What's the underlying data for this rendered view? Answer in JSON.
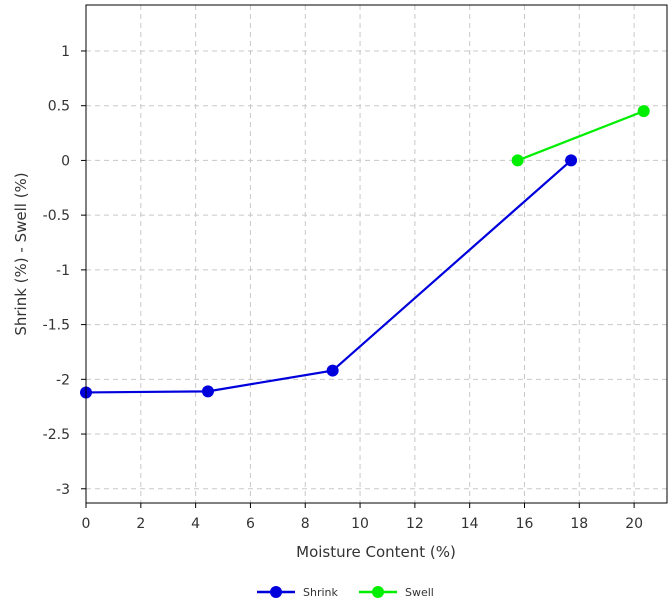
{
  "chart_data": {
    "type": "line",
    "title": "",
    "xlabel": "Moisture Content (%)",
    "ylabel": "Shrink (%) - Swell (%)",
    "xlim": [
      0,
      21.2
    ],
    "ylim": [
      -3.13,
      1.42
    ],
    "xticks": [
      0,
      2,
      4,
      6,
      8,
      10,
      12,
      14,
      16,
      18,
      20
    ],
    "yticks": [
      1,
      0.5,
      0,
      -0.5,
      -1,
      -1.5,
      -2,
      -2.5,
      -3
    ],
    "grid": true,
    "legend_position": "bottom-center",
    "series": [
      {
        "name": "Shrink",
        "color": "#0000dd",
        "x": [
          0,
          4.45,
          9.0,
          17.7
        ],
        "y": [
          -2.12,
          -2.11,
          -1.92,
          0
        ]
      },
      {
        "name": "Swell",
        "color": "#00ee00",
        "x": [
          15.75,
          20.35
        ],
        "y": [
          0,
          0.45
        ]
      }
    ]
  }
}
